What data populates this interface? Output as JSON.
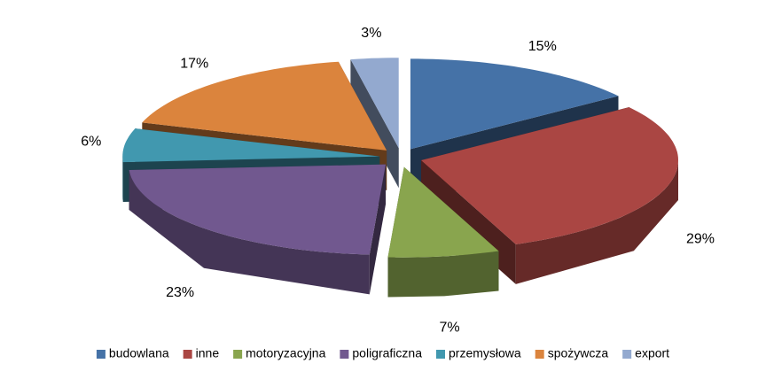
{
  "chart_data": {
    "type": "pie",
    "categories": [
      "budowlana",
      "inne",
      "motoryzacyjna",
      "poligraficzna",
      "przemysłowa",
      "spożywcza",
      "export"
    ],
    "values": [
      15,
      29,
      7,
      23,
      6,
      17,
      3
    ],
    "value_labels": [
      "15%",
      "29%",
      "7%",
      "23%",
      "6%",
      "17%",
      "3%"
    ],
    "colors": [
      "#4572a7",
      "#aa4643",
      "#89a54e",
      "#71588f",
      "#4198af",
      "#db843d",
      "#93a9cf"
    ],
    "legend": "bottom"
  }
}
